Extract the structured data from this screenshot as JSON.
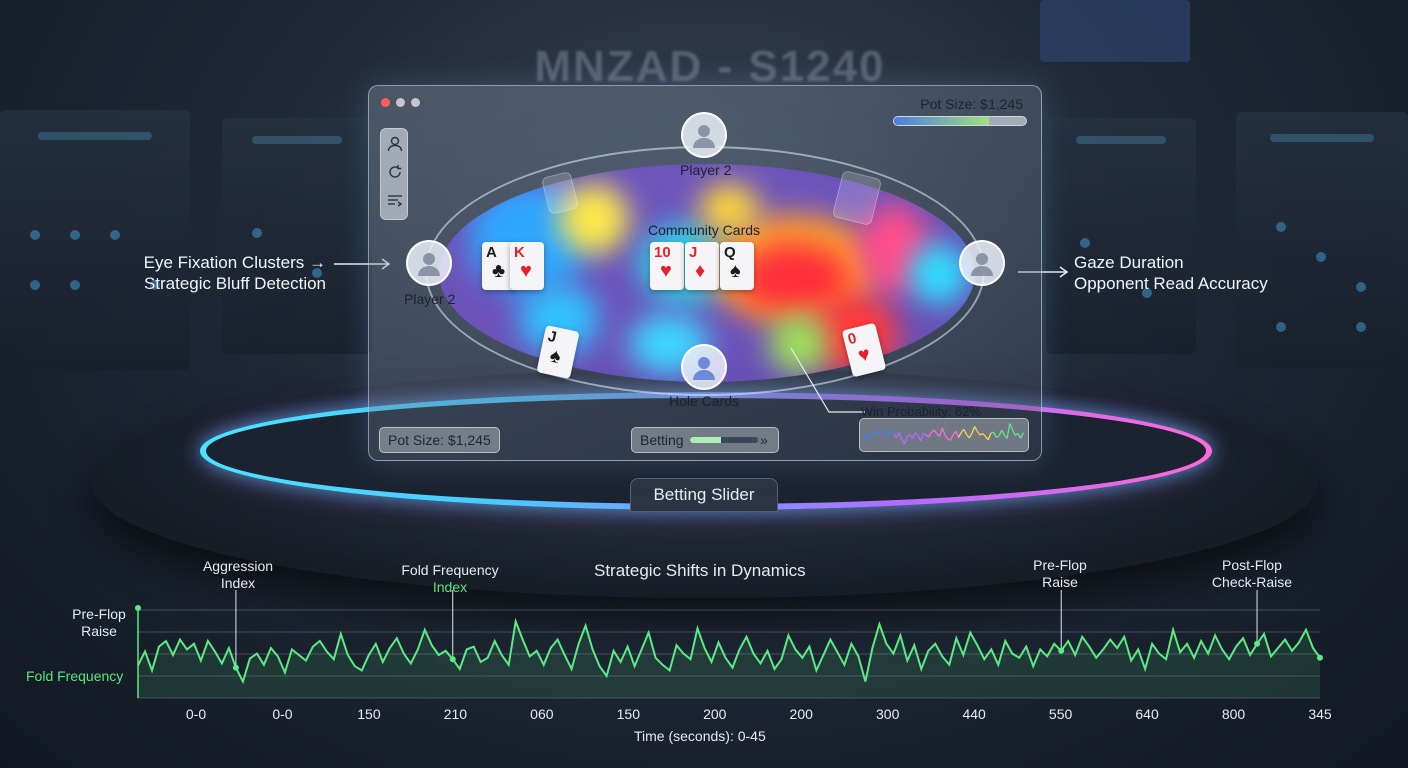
{
  "background": {
    "watermark": "MNZAD - S1240"
  },
  "panel": {
    "pot_size_top": "Pot Size: $1,245",
    "pot_progress": 0.72,
    "player_top": "Player 2",
    "player_left": "Player 2",
    "community_label": "Community Cards",
    "hole_label": "Hole Cards",
    "pot_size_bottom": "Pot Size: $1,245",
    "betting_label": "Betting",
    "betting_progress": 0.45,
    "betting_arrows": "»",
    "win_probability": "Win Probability: 62%",
    "left_hand": [
      {
        "rank": "A",
        "suit": "♣",
        "color": "#1a1a1a"
      },
      {
        "rank": "K",
        "suit": "♥",
        "color": "#e2232e"
      }
    ],
    "community_cards": [
      {
        "rank": "10",
        "suit": "♥",
        "color": "#e2232e"
      },
      {
        "rank": "J",
        "suit": "♦",
        "color": "#e2232e"
      },
      {
        "rank": "Q",
        "suit": "♠",
        "color": "#1a1a1a"
      }
    ],
    "floating_card_left": {
      "rank": "J",
      "suit": "♠",
      "color": "#1a1a1a"
    },
    "floating_card_right": {
      "rank": "0",
      "suit": "♥",
      "color": "#e2232e"
    }
  },
  "annotations": {
    "left_line1": "Eye Fixation Clusters →",
    "left_line2": "Strategic Bluff Detection",
    "right_line1": "Gaze Duration",
    "right_line2": "Opponent Read Accuracy"
  },
  "betting_slider_tab": "Betting Slider",
  "timeline": {
    "title": "Strategic Shifts in Dynamics",
    "x_axis_label": "Time (seconds): 0-45",
    "tick_labels": [
      "0-0",
      "0-0",
      "150",
      "210",
      "060",
      "150",
      "200",
      "200",
      "300",
      "440",
      "550",
      "640",
      "800",
      "345"
    ],
    "y_labels": {
      "top_line1": "Pre-Flop",
      "top_line2": "Raise",
      "bottom": "Fold Frequency"
    },
    "callouts": [
      {
        "line1": "Aggression",
        "line2": "Index",
        "green_second_line": false
      },
      {
        "line1": "Fold Frequency",
        "line2": "Index",
        "green_second_line": true
      },
      {
        "line1": "Pre-Flop",
        "line2": "Raise",
        "green_second_line": false
      },
      {
        "line1": "Post-Flop",
        "line2": "Check-Raise",
        "green_second_line": false
      }
    ],
    "series": [
      0.35,
      0.55,
      0.28,
      0.62,
      0.7,
      0.5,
      0.72,
      0.58,
      0.66,
      0.42,
      0.7,
      0.55,
      0.38,
      0.6,
      0.32,
      0.12,
      0.45,
      0.52,
      0.36,
      0.6,
      0.48,
      0.25,
      0.58,
      0.5,
      0.42,
      0.62,
      0.7,
      0.55,
      0.44,
      0.8,
      0.5,
      0.34,
      0.28,
      0.5,
      0.66,
      0.4,
      0.6,
      0.74,
      0.52,
      0.38,
      0.58,
      0.86,
      0.64,
      0.5,
      0.56,
      0.44,
      0.3,
      0.58,
      0.62,
      0.4,
      0.46,
      0.7,
      0.5,
      0.36,
      0.98,
      0.72,
      0.48,
      0.56,
      0.36,
      0.6,
      0.72,
      0.5,
      0.3,
      0.66,
      0.92,
      0.58,
      0.34,
      0.2,
      0.56,
      0.4,
      0.62,
      0.34,
      0.58,
      0.82,
      0.46,
      0.36,
      0.28,
      0.64,
      0.52,
      0.44,
      0.88,
      0.6,
      0.4,
      0.68,
      0.46,
      0.32,
      0.58,
      0.76,
      0.52,
      0.38,
      0.56,
      0.3,
      0.44,
      0.78,
      0.58,
      0.46,
      0.62,
      0.28,
      0.5,
      0.72,
      0.54,
      0.36,
      0.66,
      0.48,
      0.12,
      0.6,
      0.94,
      0.66,
      0.52,
      0.78,
      0.42,
      0.64,
      0.3,
      0.56,
      0.66,
      0.48,
      0.36,
      0.74,
      0.5,
      0.82,
      0.64,
      0.44,
      0.58,
      0.36,
      0.7,
      0.52,
      0.46,
      0.62,
      0.34,
      0.58,
      0.48,
      0.66,
      0.56,
      0.7,
      0.5,
      0.76,
      0.62,
      0.46,
      0.58,
      0.72,
      0.6,
      0.76,
      0.42,
      0.58,
      0.3,
      0.66,
      0.52,
      0.44,
      0.86,
      0.54,
      0.66,
      0.46,
      0.7,
      0.52,
      0.78,
      0.58,
      0.44,
      0.62,
      0.74,
      0.5,
      0.66,
      0.8,
      0.48,
      0.6,
      0.72,
      0.56,
      0.68,
      0.86,
      0.6,
      0.46
    ]
  },
  "colors": {
    "line_green": "#5bea84",
    "neon_left": "#4be3ff",
    "neon_right": "#ff6ad8",
    "window_close": "#ff5f57",
    "window_min": "#c6c6cc",
    "window_max": "#c6c6cc"
  }
}
